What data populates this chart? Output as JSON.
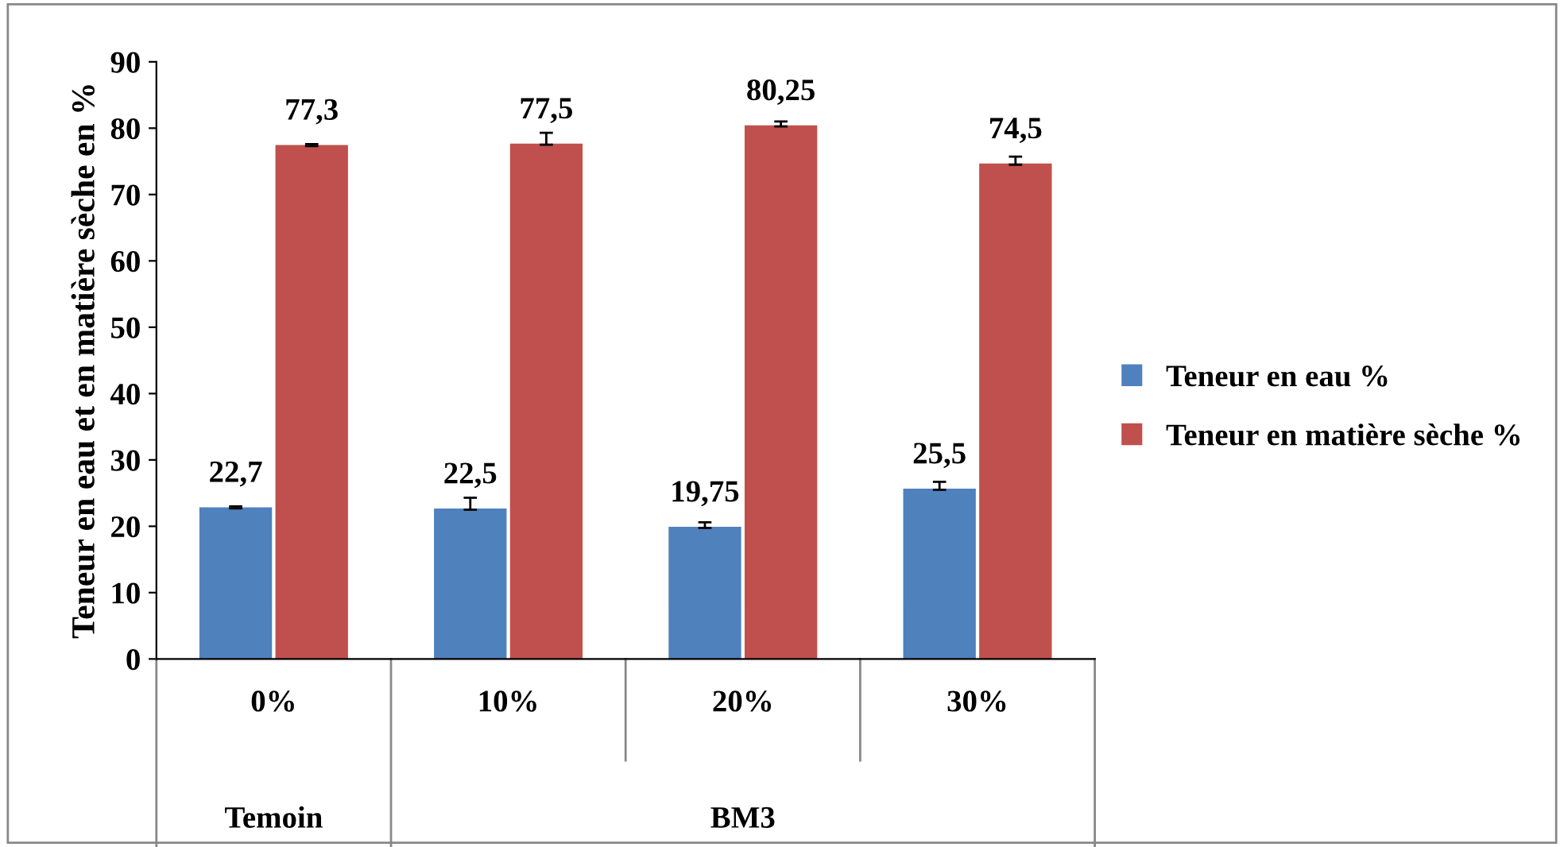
{
  "chart_data": {
    "type": "bar",
    "ylabel": "Teneur en eau et en matière sèche en %",
    "categories": [
      "0%",
      "10%",
      "20%",
      "30%"
    ],
    "series": [
      {
        "name": "Teneur en eau %",
        "color": "#4f81bd",
        "values": [
          22.7,
          22.5,
          19.75,
          25.5
        ],
        "value_labels": [
          "22,7",
          "22,5",
          "19,75",
          "25,5"
        ],
        "errors": [
          [
            22.7,
            23.0
          ],
          [
            22.5,
            24.3
          ],
          [
            19.75,
            20.6
          ],
          [
            25.5,
            26.7
          ]
        ]
      },
      {
        "name": "Teneur en matière sèche %",
        "color": "#c0504d",
        "values": [
          77.3,
          77.5,
          80.25,
          74.5
        ],
        "value_labels": [
          "77,3",
          "77,5",
          "80,25",
          "74,5"
        ],
        "errors": [
          [
            77.3,
            77.6
          ],
          [
            77.5,
            79.3
          ],
          [
            80.25,
            81.0
          ],
          [
            74.5,
            75.7
          ]
        ]
      }
    ],
    "annotations": [
      "Temoin",
      "BM3"
    ],
    "ylim": [
      0,
      90
    ],
    "yticks": [
      0,
      10,
      20,
      30,
      40,
      50,
      60,
      70,
      80,
      90
    ],
    "grid": false,
    "legend": "right"
  }
}
